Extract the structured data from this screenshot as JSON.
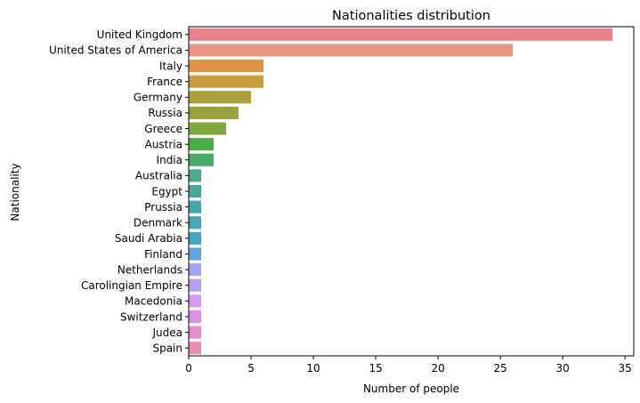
{
  "chart_data": {
    "type": "bar",
    "orientation": "horizontal",
    "title": "Nationalities distribution",
    "xlabel": "Number of people",
    "ylabel": "Nationality",
    "xlim": [
      0,
      35.7
    ],
    "xticks": [
      0,
      5,
      10,
      15,
      20,
      25,
      30,
      35
    ],
    "grid": false,
    "legend": "none",
    "categories": [
      "United Kingdom",
      "United States of America",
      "Italy",
      "France",
      "Germany",
      "Russia",
      "Greece",
      "Austria",
      "India",
      "Australia",
      "Egypt",
      "Prussia",
      "Denmark",
      "Saudi Arabia",
      "Finland",
      "Netherlands",
      "Carolingian Empire",
      "Macedonia",
      "Switzerland",
      "Judea",
      "Spain"
    ],
    "values": [
      34,
      26,
      6,
      6,
      5,
      4,
      3,
      2,
      2,
      1,
      1,
      1,
      1,
      1,
      1,
      1,
      1,
      1,
      1,
      1,
      1
    ],
    "colors": [
      "#e8828c",
      "#e89584",
      "#dd9447",
      "#c99c3f",
      "#aaa03d",
      "#9ba23d",
      "#7fa93e",
      "#4faa48",
      "#4aaa6c",
      "#49a98a",
      "#47a89c",
      "#45a8a8",
      "#46a6b6",
      "#47a3c5",
      "#62a4e3",
      "#a3a4f0",
      "#b79ef0",
      "#d898ef",
      "#e18fe4",
      "#e58dcb",
      "#e78cb3"
    ]
  }
}
